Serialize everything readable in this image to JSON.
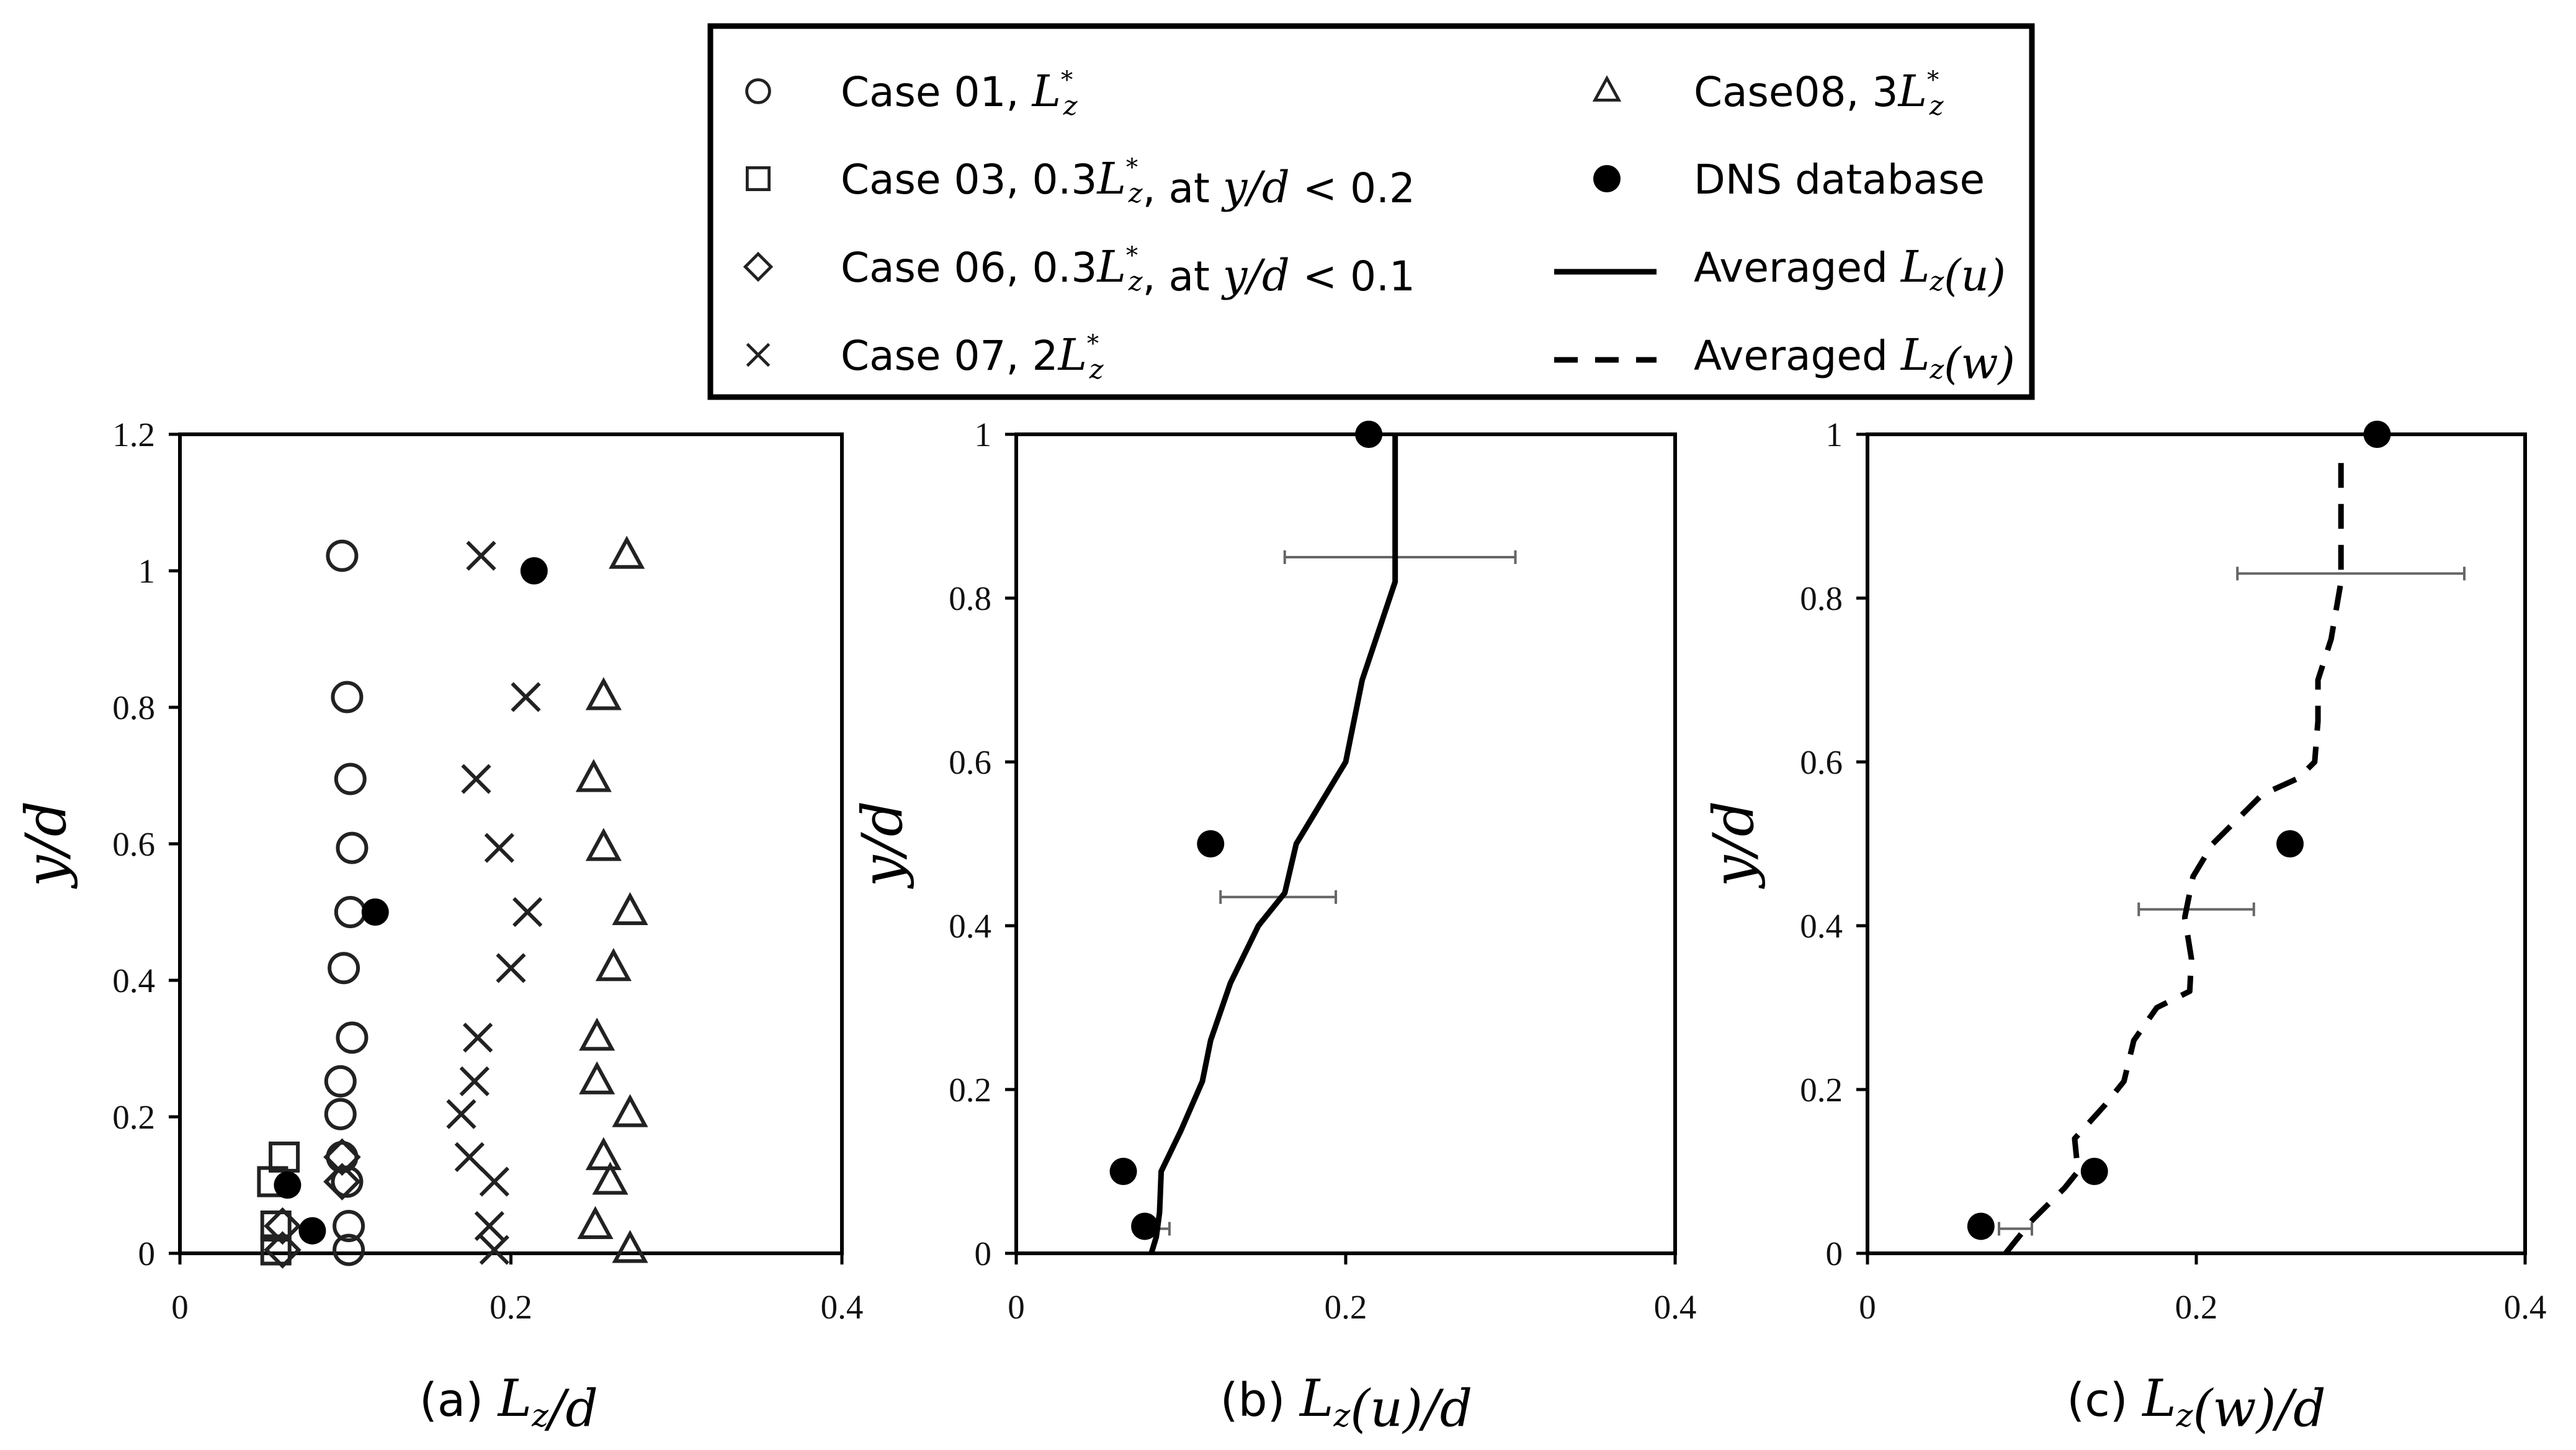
{
  "legend": {
    "items": [
      {
        "marker": "circle-open",
        "label": "Case 01, L*z"
      },
      {
        "marker": "square-open",
        "label": "Case 03, 0.3L*z, at y/d < 0.2"
      },
      {
        "marker": "diamond-open",
        "label": "Case 06, 0.3L*z, at y/d < 0.1"
      },
      {
        "marker": "cross",
        "label": "Case 07, 2L*z"
      },
      {
        "marker": "triangle-open",
        "label": "Case08, 3L*z"
      },
      {
        "marker": "dot-filled",
        "label": "DNS database"
      },
      {
        "marker": "line-solid",
        "label": "Averaged Lz(u)"
      },
      {
        "marker": "line-dashed",
        "label": "Averaged Lz(w)"
      }
    ]
  },
  "chart_data": [
    {
      "type": "scatter",
      "panel": "a",
      "caption": "(a)  Lz/d",
      "xlabel": "Lz/d",
      "ylabel": "y/d",
      "xlim": [
        0,
        0.4
      ],
      "ylim": [
        0,
        1.2
      ],
      "xticks": [
        "0",
        "0.2",
        "0.4"
      ],
      "yticks": [
        "0",
        "0.2",
        "0.4",
        "0.6",
        "0.8",
        "1",
        "1.2"
      ],
      "series": [
        {
          "name": "Case 01, L*z",
          "marker": "circle-open",
          "points": [
            [
              0.098,
              1.022
            ],
            [
              0.101,
              0.815
            ],
            [
              0.103,
              0.695
            ],
            [
              0.104,
              0.594
            ],
            [
              0.103,
              0.5
            ],
            [
              0.099,
              0.418
            ],
            [
              0.104,
              0.316
            ],
            [
              0.097,
              0.252
            ],
            [
              0.097,
              0.204
            ],
            [
              0.098,
              0.141
            ],
            [
              0.101,
              0.105
            ],
            [
              0.102,
              0.04
            ],
            [
              0.102,
              0.005
            ]
          ]
        },
        {
          "name": "Case 03, 0.3L*z, at y/d < 0.2",
          "marker": "square-open",
          "points": [
            [
              0.063,
              0.141
            ],
            [
              0.056,
              0.105
            ],
            [
              0.058,
              0.04
            ],
            [
              0.058,
              0.005
            ]
          ]
        },
        {
          "name": "Case 06, 0.3L*z, at y/d < 0.1",
          "marker": "diamond-open",
          "points": [
            [
              0.098,
              0.141
            ],
            [
              0.098,
              0.105
            ],
            [
              0.062,
              0.04
            ],
            [
              0.062,
              0.005
            ]
          ]
        },
        {
          "name": "Case 07, 2L*z",
          "marker": "cross",
          "points": [
            [
              0.182,
              1.022
            ],
            [
              0.209,
              0.815
            ],
            [
              0.179,
              0.695
            ],
            [
              0.193,
              0.594
            ],
            [
              0.21,
              0.5
            ],
            [
              0.2,
              0.418
            ],
            [
              0.18,
              0.316
            ],
            [
              0.178,
              0.252
            ],
            [
              0.17,
              0.204
            ],
            [
              0.175,
              0.141
            ],
            [
              0.19,
              0.105
            ],
            [
              0.187,
              0.04
            ],
            [
              0.19,
              0.005
            ]
          ]
        },
        {
          "name": "Case08, 3L*z",
          "marker": "triangle-open",
          "points": [
            [
              0.27,
              1.022
            ],
            [
              0.256,
              0.815
            ],
            [
              0.25,
              0.695
            ],
            [
              0.256,
              0.594
            ],
            [
              0.272,
              0.5
            ],
            [
              0.262,
              0.418
            ],
            [
              0.252,
              0.316
            ],
            [
              0.252,
              0.252
            ],
            [
              0.272,
              0.204
            ],
            [
              0.256,
              0.141
            ],
            [
              0.26,
              0.105
            ],
            [
              0.251,
              0.04
            ],
            [
              0.272,
              0.005
            ]
          ]
        },
        {
          "name": "DNS database",
          "marker": "dot-filled",
          "points": [
            [
              0.214,
              1.0
            ],
            [
              0.118,
              0.5
            ],
            [
              0.065,
              0.1
            ],
            [
              0.08,
              0.033
            ]
          ]
        }
      ]
    },
    {
      "type": "line",
      "panel": "b",
      "caption": "(b)  Lz(u)/d",
      "xlabel": "Lz(u)/d",
      "ylabel": "y/d",
      "xlim": [
        0,
        0.4
      ],
      "ylim": [
        0,
        1
      ],
      "xticks": [
        "0",
        "0.2",
        "0.4"
      ],
      "yticks": [
        "0",
        "0.2",
        "0.4",
        "0.6",
        "0.8",
        "1"
      ],
      "series": [
        {
          "name": "Averaged Lz(u)",
          "style": "solid",
          "points": [
            [
              0.082,
              0.0
            ],
            [
              0.085,
              0.02
            ],
            [
              0.087,
              0.05
            ],
            [
              0.088,
              0.1
            ],
            [
              0.1,
              0.15
            ],
            [
              0.113,
              0.21
            ],
            [
              0.118,
              0.26
            ],
            [
              0.13,
              0.33
            ],
            [
              0.147,
              0.4
            ],
            [
              0.163,
              0.44
            ],
            [
              0.17,
              0.5
            ],
            [
              0.2,
              0.6
            ],
            [
              0.21,
              0.7
            ],
            [
              0.23,
              0.82
            ],
            [
              0.23,
              1.0
            ]
          ]
        },
        {
          "name": "DNS database",
          "style": "dot-filled",
          "points": [
            [
              0.214,
              1.0
            ],
            [
              0.118,
              0.5
            ],
            [
              0.065,
              0.1
            ],
            [
              0.078,
              0.033
            ]
          ]
        }
      ],
      "error_bars": [
        {
          "y": 0.85,
          "xmin": 0.163,
          "xmax": 0.303
        },
        {
          "y": 0.435,
          "xmin": 0.124,
          "xmax": 0.194
        },
        {
          "y": 0.03,
          "xmin": 0.083,
          "xmax": 0.093
        }
      ]
    },
    {
      "type": "line",
      "panel": "c",
      "caption": "(c) Lz(w)/d",
      "xlabel": "Lz(w)/d",
      "ylabel": "y/d",
      "xlim": [
        0,
        0.4
      ],
      "ylim": [
        0,
        1
      ],
      "xticks": [
        "0",
        "0.2",
        "0.4"
      ],
      "yticks": [
        "0",
        "0.2",
        "0.4",
        "0.6",
        "0.8",
        "1"
      ],
      "series": [
        {
          "name": "Averaged Lz(w)",
          "style": "dashed",
          "points": [
            [
              0.084,
              0.0
            ],
            [
              0.1,
              0.04
            ],
            [
              0.12,
              0.08
            ],
            [
              0.128,
              0.1
            ],
            [
              0.126,
              0.14
            ],
            [
              0.144,
              0.18
            ],
            [
              0.156,
              0.21
            ],
            [
              0.162,
              0.26
            ],
            [
              0.176,
              0.3
            ],
            [
              0.196,
              0.32
            ],
            [
              0.197,
              0.36
            ],
            [
              0.193,
              0.41
            ],
            [
              0.198,
              0.46
            ],
            [
              0.21,
              0.5
            ],
            [
              0.225,
              0.53
            ],
            [
              0.24,
              0.56
            ],
            [
              0.262,
              0.58
            ],
            [
              0.272,
              0.6
            ],
            [
              0.274,
              0.65
            ],
            [
              0.274,
              0.7
            ],
            [
              0.282,
              0.75
            ],
            [
              0.288,
              0.82
            ],
            [
              0.288,
              0.9
            ],
            [
              0.288,
              0.98
            ]
          ]
        },
        {
          "name": "DNS database",
          "style": "dot-filled",
          "points": [
            [
              0.31,
              1.0
            ],
            [
              0.257,
              0.5
            ],
            [
              0.138,
              0.1
            ],
            [
              0.069,
              0.033
            ]
          ]
        }
      ],
      "error_bars": [
        {
          "y": 0.83,
          "xmin": 0.225,
          "xmax": 0.363
        },
        {
          "y": 0.42,
          "xmin": 0.165,
          "xmax": 0.235
        },
        {
          "y": 0.03,
          "xmin": 0.08,
          "xmax": 0.1
        }
      ]
    }
  ]
}
